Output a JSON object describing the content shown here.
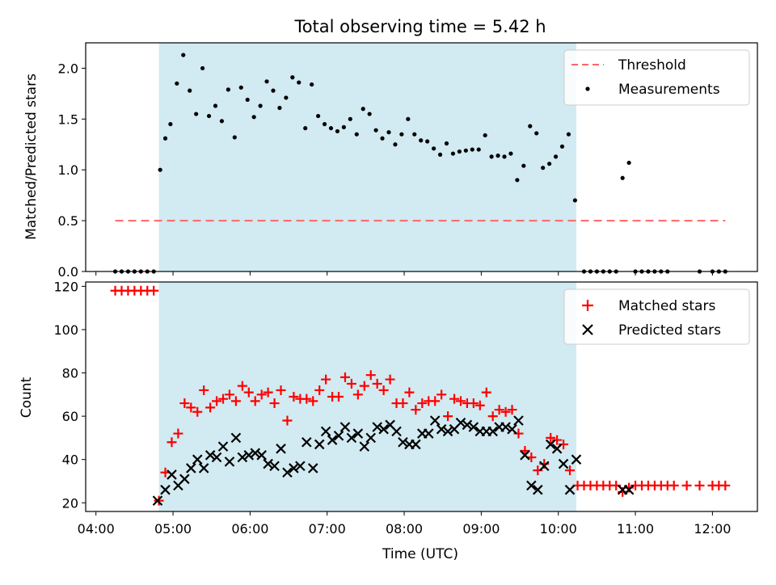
{
  "title": "Total observing time = 5.42 h",
  "colors": {
    "span": "#add8e6",
    "threshold": "#ff6666",
    "measurements": "#000000",
    "matched": "#ff0000",
    "predicted": "#000000"
  },
  "chart_data": [
    {
      "type": "scatter",
      "title": "Total observing time = 5.42 h",
      "ylabel": "Matched/Predicted stars",
      "xlim": [
        "03:52",
        "12:35"
      ],
      "ylim": [
        0,
        2.25
      ],
      "yticks": [
        "0.0",
        "0.5",
        "1.0",
        "1.5",
        "2.0"
      ],
      "ytick_values": [
        0,
        0.5,
        1.0,
        1.5,
        2.0
      ],
      "legend_position": "top-right",
      "shaded_span": [
        "04:49",
        "10:14"
      ],
      "threshold": {
        "name": "Threshold",
        "value": 0.5,
        "x_range": [
          "04:15",
          "12:10"
        ],
        "style": "dashed"
      },
      "series": [
        {
          "name": "Measurements",
          "marker": "dot",
          "points": [
            [
              "04:15",
              0
            ],
            [
              "04:20",
              0
            ],
            [
              "04:25",
              0
            ],
            [
              "04:30",
              0
            ],
            [
              "04:35",
              0
            ],
            [
              "04:40",
              0
            ],
            [
              "04:45",
              0
            ],
            [
              "04:50",
              1.0
            ],
            [
              "04:54",
              1.31
            ],
            [
              "04:58",
              1.45
            ],
            [
              "05:03",
              1.85
            ],
            [
              "05:08",
              2.13
            ],
            [
              "05:13",
              1.78
            ],
            [
              "05:18",
              1.55
            ],
            [
              "05:23",
              2.0
            ],
            [
              "05:28",
              1.53
            ],
            [
              "05:33",
              1.63
            ],
            [
              "05:38",
              1.48
            ],
            [
              "05:43",
              1.79
            ],
            [
              "05:48",
              1.32
            ],
            [
              "05:53",
              1.81
            ],
            [
              "05:58",
              1.69
            ],
            [
              "06:03",
              1.52
            ],
            [
              "06:08",
              1.63
            ],
            [
              "06:13",
              1.87
            ],
            [
              "06:18",
              1.78
            ],
            [
              "06:23",
              1.61
            ],
            [
              "06:28",
              1.71
            ],
            [
              "06:33",
              1.91
            ],
            [
              "06:38",
              1.86
            ],
            [
              "06:43",
              1.41
            ],
            [
              "06:48",
              1.84
            ],
            [
              "06:53",
              1.53
            ],
            [
              "06:58",
              1.45
            ],
            [
              "07:03",
              1.41
            ],
            [
              "07:08",
              1.38
            ],
            [
              "07:13",
              1.42
            ],
            [
              "07:18",
              1.5
            ],
            [
              "07:23",
              1.35
            ],
            [
              "07:28",
              1.6
            ],
            [
              "07:33",
              1.55
            ],
            [
              "07:38",
              1.39
            ],
            [
              "07:43",
              1.31
            ],
            [
              "07:48",
              1.37
            ],
            [
              "07:53",
              1.25
            ],
            [
              "07:58",
              1.35
            ],
            [
              "08:03",
              1.5
            ],
            [
              "08:08",
              1.35
            ],
            [
              "08:13",
              1.29
            ],
            [
              "08:18",
              1.28
            ],
            [
              "08:23",
              1.21
            ],
            [
              "08:28",
              1.15
            ],
            [
              "08:33",
              1.26
            ],
            [
              "08:38",
              1.16
            ],
            [
              "08:43",
              1.18
            ],
            [
              "08:48",
              1.19
            ],
            [
              "08:53",
              1.2
            ],
            [
              "08:58",
              1.2
            ],
            [
              "09:03",
              1.34
            ],
            [
              "09:08",
              1.13
            ],
            [
              "09:13",
              1.14
            ],
            [
              "09:18",
              1.13
            ],
            [
              "09:23",
              1.16
            ],
            [
              "09:28",
              0.9
            ],
            [
              "09:33",
              1.04
            ],
            [
              "09:38",
              1.43
            ],
            [
              "09:43",
              1.36
            ],
            [
              "09:48",
              1.02
            ],
            [
              "09:53",
              1.06
            ],
            [
              "09:58",
              1.13
            ],
            [
              "10:03",
              1.23
            ],
            [
              "10:08",
              1.35
            ],
            [
              "10:13",
              0.7
            ],
            [
              "10:20",
              0
            ],
            [
              "10:25",
              0
            ],
            [
              "10:30",
              0
            ],
            [
              "10:35",
              0
            ],
            [
              "10:40",
              0
            ],
            [
              "10:45",
              0
            ],
            [
              "10:50",
              0.92
            ],
            [
              "10:55",
              1.07
            ],
            [
              "11:00",
              0
            ],
            [
              "11:05",
              0
            ],
            [
              "11:10",
              0
            ],
            [
              "11:15",
              0
            ],
            [
              "11:20",
              0
            ],
            [
              "11:25",
              0
            ],
            [
              "11:50",
              0
            ],
            [
              "12:00",
              0
            ],
            [
              "12:05",
              0
            ],
            [
              "12:10",
              0
            ]
          ]
        }
      ]
    },
    {
      "type": "scatter",
      "xlabel": "Time (UTC)",
      "ylabel": "Count",
      "xlim": [
        "03:52",
        "12:35"
      ],
      "ylim": [
        16,
        122
      ],
      "xticks": [
        "04:00",
        "05:00",
        "06:00",
        "07:00",
        "08:00",
        "09:00",
        "10:00",
        "11:00",
        "12:00"
      ],
      "yticks": [
        "20",
        "40",
        "60",
        "80",
        "100",
        "120"
      ],
      "ytick_values": [
        20,
        40,
        60,
        80,
        100,
        120
      ],
      "legend_position": "top-right",
      "shaded_span": [
        "04:49",
        "10:14"
      ],
      "series": [
        {
          "name": "Matched stars",
          "marker": "plus",
          "points": [
            [
              "04:15",
              118
            ],
            [
              "04:20",
              118
            ],
            [
              "04:25",
              118
            ],
            [
              "04:30",
              118
            ],
            [
              "04:35",
              118
            ],
            [
              "04:40",
              118
            ],
            [
              "04:45",
              118
            ],
            [
              "04:49",
              21
            ],
            [
              "04:54",
              34
            ],
            [
              "04:59",
              48
            ],
            [
              "05:04",
              52
            ],
            [
              "05:09",
              66
            ],
            [
              "05:14",
              64
            ],
            [
              "05:19",
              62
            ],
            [
              "05:24",
              72
            ],
            [
              "05:29",
              64
            ],
            [
              "05:34",
              67
            ],
            [
              "05:39",
              68
            ],
            [
              "05:44",
              70
            ],
            [
              "05:49",
              67
            ],
            [
              "05:54",
              74
            ],
            [
              "05:59",
              71
            ],
            [
              "06:04",
              67
            ],
            [
              "06:09",
              70
            ],
            [
              "06:14",
              71
            ],
            [
              "06:19",
              66
            ],
            [
              "06:24",
              72
            ],
            [
              "06:29",
              58
            ],
            [
              "06:34",
              69
            ],
            [
              "06:39",
              68
            ],
            [
              "06:44",
              68
            ],
            [
              "06:49",
              67
            ],
            [
              "06:54",
              72
            ],
            [
              "06:59",
              77
            ],
            [
              "07:04",
              69
            ],
            [
              "07:09",
              69
            ],
            [
              "07:14",
              78
            ],
            [
              "07:19",
              75
            ],
            [
              "07:24",
              70
            ],
            [
              "07:29",
              74
            ],
            [
              "07:34",
              79
            ],
            [
              "07:39",
              75
            ],
            [
              "07:44",
              72
            ],
            [
              "07:49",
              77
            ],
            [
              "07:54",
              66
            ],
            [
              "07:59",
              66
            ],
            [
              "08:04",
              71
            ],
            [
              "08:09",
              63
            ],
            [
              "08:14",
              66
            ],
            [
              "08:19",
              67
            ],
            [
              "08:24",
              67
            ],
            [
              "08:29",
              70
            ],
            [
              "08:34",
              60
            ],
            [
              "08:39",
              68
            ],
            [
              "08:44",
              67
            ],
            [
              "08:49",
              66
            ],
            [
              "08:54",
              66
            ],
            [
              "08:59",
              65
            ],
            [
              "09:04",
              71
            ],
            [
              "09:09",
              60
            ],
            [
              "09:14",
              63
            ],
            [
              "09:19",
              62
            ],
            [
              "09:24",
              63
            ],
            [
              "09:29",
              52
            ],
            [
              "09:34",
              44
            ],
            [
              "09:39",
              41
            ],
            [
              "09:44",
              35
            ],
            [
              "09:49",
              38
            ],
            [
              "09:54",
              50
            ],
            [
              "09:59",
              49
            ],
            [
              "10:04",
              47
            ],
            [
              "10:09",
              35
            ],
            [
              "10:15",
              28
            ],
            [
              "10:20",
              28
            ],
            [
              "10:25",
              28
            ],
            [
              "10:30",
              28
            ],
            [
              "10:35",
              28
            ],
            [
              "10:40",
              28
            ],
            [
              "10:45",
              28
            ],
            [
              "10:50",
              25
            ],
            [
              "10:55",
              27
            ],
            [
              "11:00",
              28
            ],
            [
              "11:05",
              28
            ],
            [
              "11:10",
              28
            ],
            [
              "11:15",
              28
            ],
            [
              "11:20",
              28
            ],
            [
              "11:25",
              28
            ],
            [
              "11:30",
              28
            ],
            [
              "11:40",
              28
            ],
            [
              "11:50",
              28
            ],
            [
              "12:00",
              28
            ],
            [
              "12:05",
              28
            ],
            [
              "12:10",
              28
            ]
          ]
        },
        {
          "name": "Predicted stars",
          "marker": "x",
          "points": [
            [
              "04:48",
              21
            ],
            [
              "04:54",
              26
            ],
            [
              "04:59",
              33
            ],
            [
              "05:04",
              28
            ],
            [
              "05:09",
              31
            ],
            [
              "05:14",
              36
            ],
            [
              "05:19",
              40
            ],
            [
              "05:24",
              36
            ],
            [
              "05:29",
              42
            ],
            [
              "05:34",
              41
            ],
            [
              "05:39",
              46
            ],
            [
              "05:44",
              39
            ],
            [
              "05:49",
              50
            ],
            [
              "05:54",
              41
            ],
            [
              "05:59",
              42
            ],
            [
              "06:04",
              43
            ],
            [
              "06:09",
              42
            ],
            [
              "06:14",
              38
            ],
            [
              "06:19",
              37
            ],
            [
              "06:24",
              45
            ],
            [
              "06:29",
              34
            ],
            [
              "06:34",
              36
            ],
            [
              "06:39",
              37
            ],
            [
              "06:44",
              48
            ],
            [
              "06:49",
              36
            ],
            [
              "06:54",
              47
            ],
            [
              "06:59",
              53
            ],
            [
              "07:04",
              49
            ],
            [
              "07:09",
              51
            ],
            [
              "07:14",
              55
            ],
            [
              "07:19",
              50
            ],
            [
              "07:24",
              52
            ],
            [
              "07:29",
              46
            ],
            [
              "07:34",
              50
            ],
            [
              "07:39",
              55
            ],
            [
              "07:44",
              54
            ],
            [
              "07:49",
              56
            ],
            [
              "07:54",
              53
            ],
            [
              "07:59",
              48
            ],
            [
              "08:04",
              47
            ],
            [
              "08:09",
              47
            ],
            [
              "08:14",
              52
            ],
            [
              "08:19",
              52
            ],
            [
              "08:24",
              58
            ],
            [
              "08:29",
              54
            ],
            [
              "08:34",
              53
            ],
            [
              "08:39",
              54
            ],
            [
              "08:44",
              57
            ],
            [
              "08:49",
              56
            ],
            [
              "08:54",
              55
            ],
            [
              "08:59",
              53
            ],
            [
              "09:04",
              53
            ],
            [
              "09:09",
              53
            ],
            [
              "09:14",
              55
            ],
            [
              "09:19",
              55
            ],
            [
              "09:24",
              54
            ],
            [
              "09:29",
              58
            ],
            [
              "09:34",
              42
            ],
            [
              "09:39",
              28
            ],
            [
              "09:44",
              26
            ],
            [
              "09:49",
              37
            ],
            [
              "09:54",
              47
            ],
            [
              "09:59",
              45
            ],
            [
              "10:04",
              38
            ],
            [
              "10:09",
              26
            ],
            [
              "10:14",
              40
            ],
            [
              "10:50",
              26
            ],
            [
              "10:55",
              26
            ]
          ]
        }
      ]
    }
  ]
}
